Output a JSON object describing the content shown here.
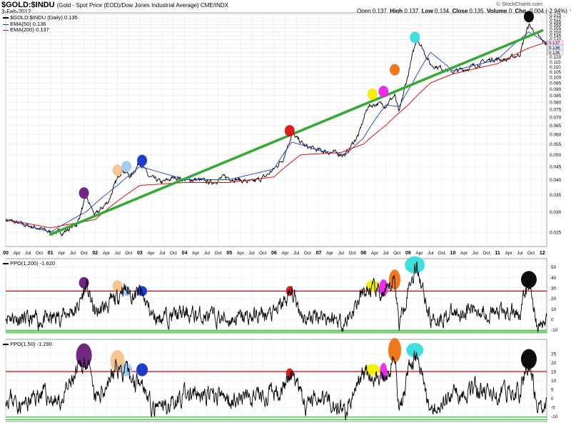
{
  "header": {
    "symbol": "$GOLD:$INDU",
    "subtitle": "(Gold - Spot Price (EOD)/Dow Jones Industrial Average)  CME/INDX",
    "date": "3-Feb-2012",
    "brand": "© StockCharts.com",
    "ohlc": {
      "open_label": "Open",
      "open": "0.137",
      "high_label": "High",
      "high": "0.137",
      "low_label": "Low",
      "low": "0.134",
      "close_label": "Close",
      "close": "0.135",
      "volume_label": "Volume",
      "volume": "0",
      "chg_label": "Chg",
      "chg": "-0.004 (-2.94%)",
      "chg_arrow": "▼"
    }
  },
  "legend_main": {
    "line1": "$GOLD:$INDU (Daily) 0.135",
    "line2": "EMA(50) 0.136",
    "line3": "EMA(200) 0.137"
  },
  "legend_ppo1": "PPO(1,200) -1.620",
  "legend_ppo2": "PPO(1,50) -1.290",
  "colors": {
    "price": "#000000",
    "ema50": "#1a3dcc",
    "ema200": "#dd1111",
    "trend": "#33aa33",
    "hline": "#dd0000",
    "zero": "#22cc22",
    "markers": [
      "#6a1b7a",
      "#f5c38a",
      "#9ecbf0",
      "#1133cc",
      "#dd1111",
      "#f2f000",
      "#ee22ee",
      "#f07010",
      "#33dddd",
      "#000000"
    ]
  },
  "chart_data": [
    {
      "type": "line",
      "title": "$GOLD:$INDU (Daily)",
      "y_scale": "log",
      "ylim": [
        0.022,
        0.178
      ],
      "y_ticks": [
        "0.175",
        "0.170",
        "0.165",
        "0.160",
        "0.155",
        "0.150",
        "0.145",
        "0.140",
        "0.135",
        "0.130",
        "0.125",
        "0.120",
        "0.115",
        "0.110",
        "0.105",
        "0.100",
        "0.095",
        "0.090",
        "0.085",
        "0.080",
        "0.075",
        "0.070",
        "0.065",
        "0.060",
        "0.055",
        "0.050",
        "0.045",
        "0.040",
        "0.035",
        "0.030",
        "0.025"
      ],
      "x_labels": [
        "00",
        "Apr",
        "Jul",
        "Oct",
        "01",
        "Apr",
        "Jul",
        "Oct",
        "02",
        "Apr",
        "Jul",
        "Oct",
        "03",
        "Apr",
        "Jul",
        "Oct",
        "04",
        "Apr",
        "Jul",
        "Oct",
        "05",
        "Apr",
        "Jul",
        "Oct",
        "06",
        "Apr",
        "Jul",
        "Oct",
        "07",
        "Apr",
        "Jul",
        "Oct",
        "08",
        "Apr",
        "Jul",
        "Oct",
        "09",
        "Apr",
        "Jul",
        "Oct",
        "10",
        "Apr",
        "Jul",
        "Oct",
        "11",
        "Apr",
        "Jul",
        "Oct",
        "12"
      ],
      "last_value_labels": [
        "0.137",
        "0.136",
        "0.135"
      ],
      "series": [
        {
          "name": "$GOLD:$INDU",
          "x": [
            2000.0,
            2000.3,
            2000.7,
            2001.0,
            2001.3,
            2001.6,
            2001.8,
            2002.0,
            2002.3,
            2002.6,
            2002.8,
            2003.0,
            2003.2,
            2003.5,
            2003.8,
            2004.0,
            2004.3,
            2004.6,
            2004.9,
            2005.2,
            2005.5,
            2005.8,
            2006.0,
            2006.2,
            2006.4,
            2006.7,
            2007.0,
            2007.3,
            2007.6,
            2007.9,
            2008.1,
            2008.3,
            2008.5,
            2008.7,
            2008.8,
            2009.0,
            2009.2,
            2009.5,
            2009.8,
            2010.0,
            2010.3,
            2010.6,
            2010.9,
            2011.2,
            2011.5,
            2011.7,
            2011.8,
            2012.0,
            2012.1
          ],
          "values": [
            0.028,
            0.027,
            0.026,
            0.025,
            0.025,
            0.027,
            0.034,
            0.029,
            0.033,
            0.044,
            0.041,
            0.047,
            0.041,
            0.039,
            0.041,
            0.04,
            0.04,
            0.039,
            0.041,
            0.04,
            0.039,
            0.041,
            0.044,
            0.048,
            0.06,
            0.054,
            0.052,
            0.051,
            0.05,
            0.06,
            0.077,
            0.079,
            0.078,
            0.085,
            0.072,
            0.102,
            0.142,
            0.112,
            0.108,
            0.105,
            0.108,
            0.113,
            0.118,
            0.117,
            0.123,
            0.16,
            0.152,
            0.138,
            0.135
          ]
        },
        {
          "name": "EMA(50)",
          "x": [
            2000.0,
            2001.0,
            2001.8,
            2002.5,
            2003.0,
            2004.0,
            2005.0,
            2006.0,
            2006.4,
            2007.0,
            2007.6,
            2008.0,
            2008.5,
            2008.8,
            2009.1,
            2009.5,
            2010.0,
            2011.0,
            2011.7,
            2012.1
          ],
          "values": [
            0.028,
            0.025,
            0.03,
            0.038,
            0.045,
            0.04,
            0.04,
            0.044,
            0.056,
            0.052,
            0.05,
            0.058,
            0.078,
            0.077,
            0.095,
            0.125,
            0.106,
            0.117,
            0.15,
            0.136
          ]
        },
        {
          "name": "EMA(200)",
          "x": [
            2000.0,
            2001.0,
            2002.0,
            2002.5,
            2003.0,
            2004.0,
            2005.0,
            2006.0,
            2006.6,
            2007.5,
            2008.0,
            2008.5,
            2009.0,
            2009.5,
            2010.0,
            2011.0,
            2011.7,
            2012.1
          ],
          "values": [
            0.028,
            0.026,
            0.028,
            0.033,
            0.038,
            0.039,
            0.039,
            0.041,
            0.05,
            0.051,
            0.055,
            0.065,
            0.078,
            0.095,
            0.103,
            0.113,
            0.13,
            0.137
          ]
        },
        {
          "name": "trend",
          "x": [
            2001.0,
            2012.0
          ],
          "values": [
            0.0245,
            0.152
          ]
        }
      ]
    },
    {
      "type": "line",
      "title": "PPO(1,200)",
      "ylim": [
        -13,
        58
      ],
      "y_ticks": [
        "50",
        "40",
        "30",
        "20",
        "10",
        "0",
        "-10"
      ],
      "reference_line": 27,
      "series": [
        {
          "name": "PPO(1,200)",
          "x": [
            2000.0,
            2000.5,
            2001.0,
            2001.6,
            2001.8,
            2002.0,
            2002.5,
            2002.6,
            2002.9,
            2003.0,
            2003.3,
            2004.0,
            2005.0,
            2006.0,
            2006.4,
            2006.7,
            2007.0,
            2007.6,
            2008.0,
            2008.2,
            2008.5,
            2008.7,
            2008.8,
            2009.0,
            2009.2,
            2009.5,
            2010.0,
            2010.5,
            2011.0,
            2011.5,
            2011.7,
            2011.9,
            2012.1
          ],
          "values": [
            5,
            -2,
            0,
            10,
            32,
            5,
            20,
            31,
            22,
            27,
            2,
            5,
            0,
            5,
            25,
            0,
            5,
            -3,
            25,
            28,
            22,
            40,
            -5,
            30,
            52,
            0,
            5,
            10,
            5,
            8,
            34,
            -8,
            -2
          ]
        }
      ]
    },
    {
      "type": "line",
      "title": "PPO(1,50)",
      "ylim": [
        -13,
        33
      ],
      "y_ticks": [
        "25",
        "20",
        "15",
        "10",
        "5",
        "0",
        "-5",
        "-10"
      ],
      "reference_line": 15,
      "series": [
        {
          "name": "PPO(1,50)",
          "x": [
            2000.0,
            2000.4,
            2000.8,
            2001.2,
            2001.8,
            2002.0,
            2002.5,
            2002.6,
            2002.9,
            2003.0,
            2003.3,
            2004.0,
            2005.0,
            2006.0,
            2006.4,
            2006.7,
            2007.0,
            2007.6,
            2008.0,
            2008.2,
            2008.5,
            2008.7,
            2008.8,
            2009.0,
            2009.2,
            2009.5,
            2010.0,
            2010.5,
            2011.0,
            2011.5,
            2011.7,
            2011.9,
            2012.1
          ],
          "values": [
            2,
            -4,
            3,
            -3,
            22,
            -2,
            18,
            15,
            9,
            14,
            -8,
            2,
            0,
            2,
            12,
            -5,
            3,
            -8,
            14,
            13,
            8,
            25,
            -10,
            15,
            24,
            -6,
            3,
            5,
            2,
            4,
            22,
            -7,
            0
          ]
        }
      ]
    }
  ]
}
